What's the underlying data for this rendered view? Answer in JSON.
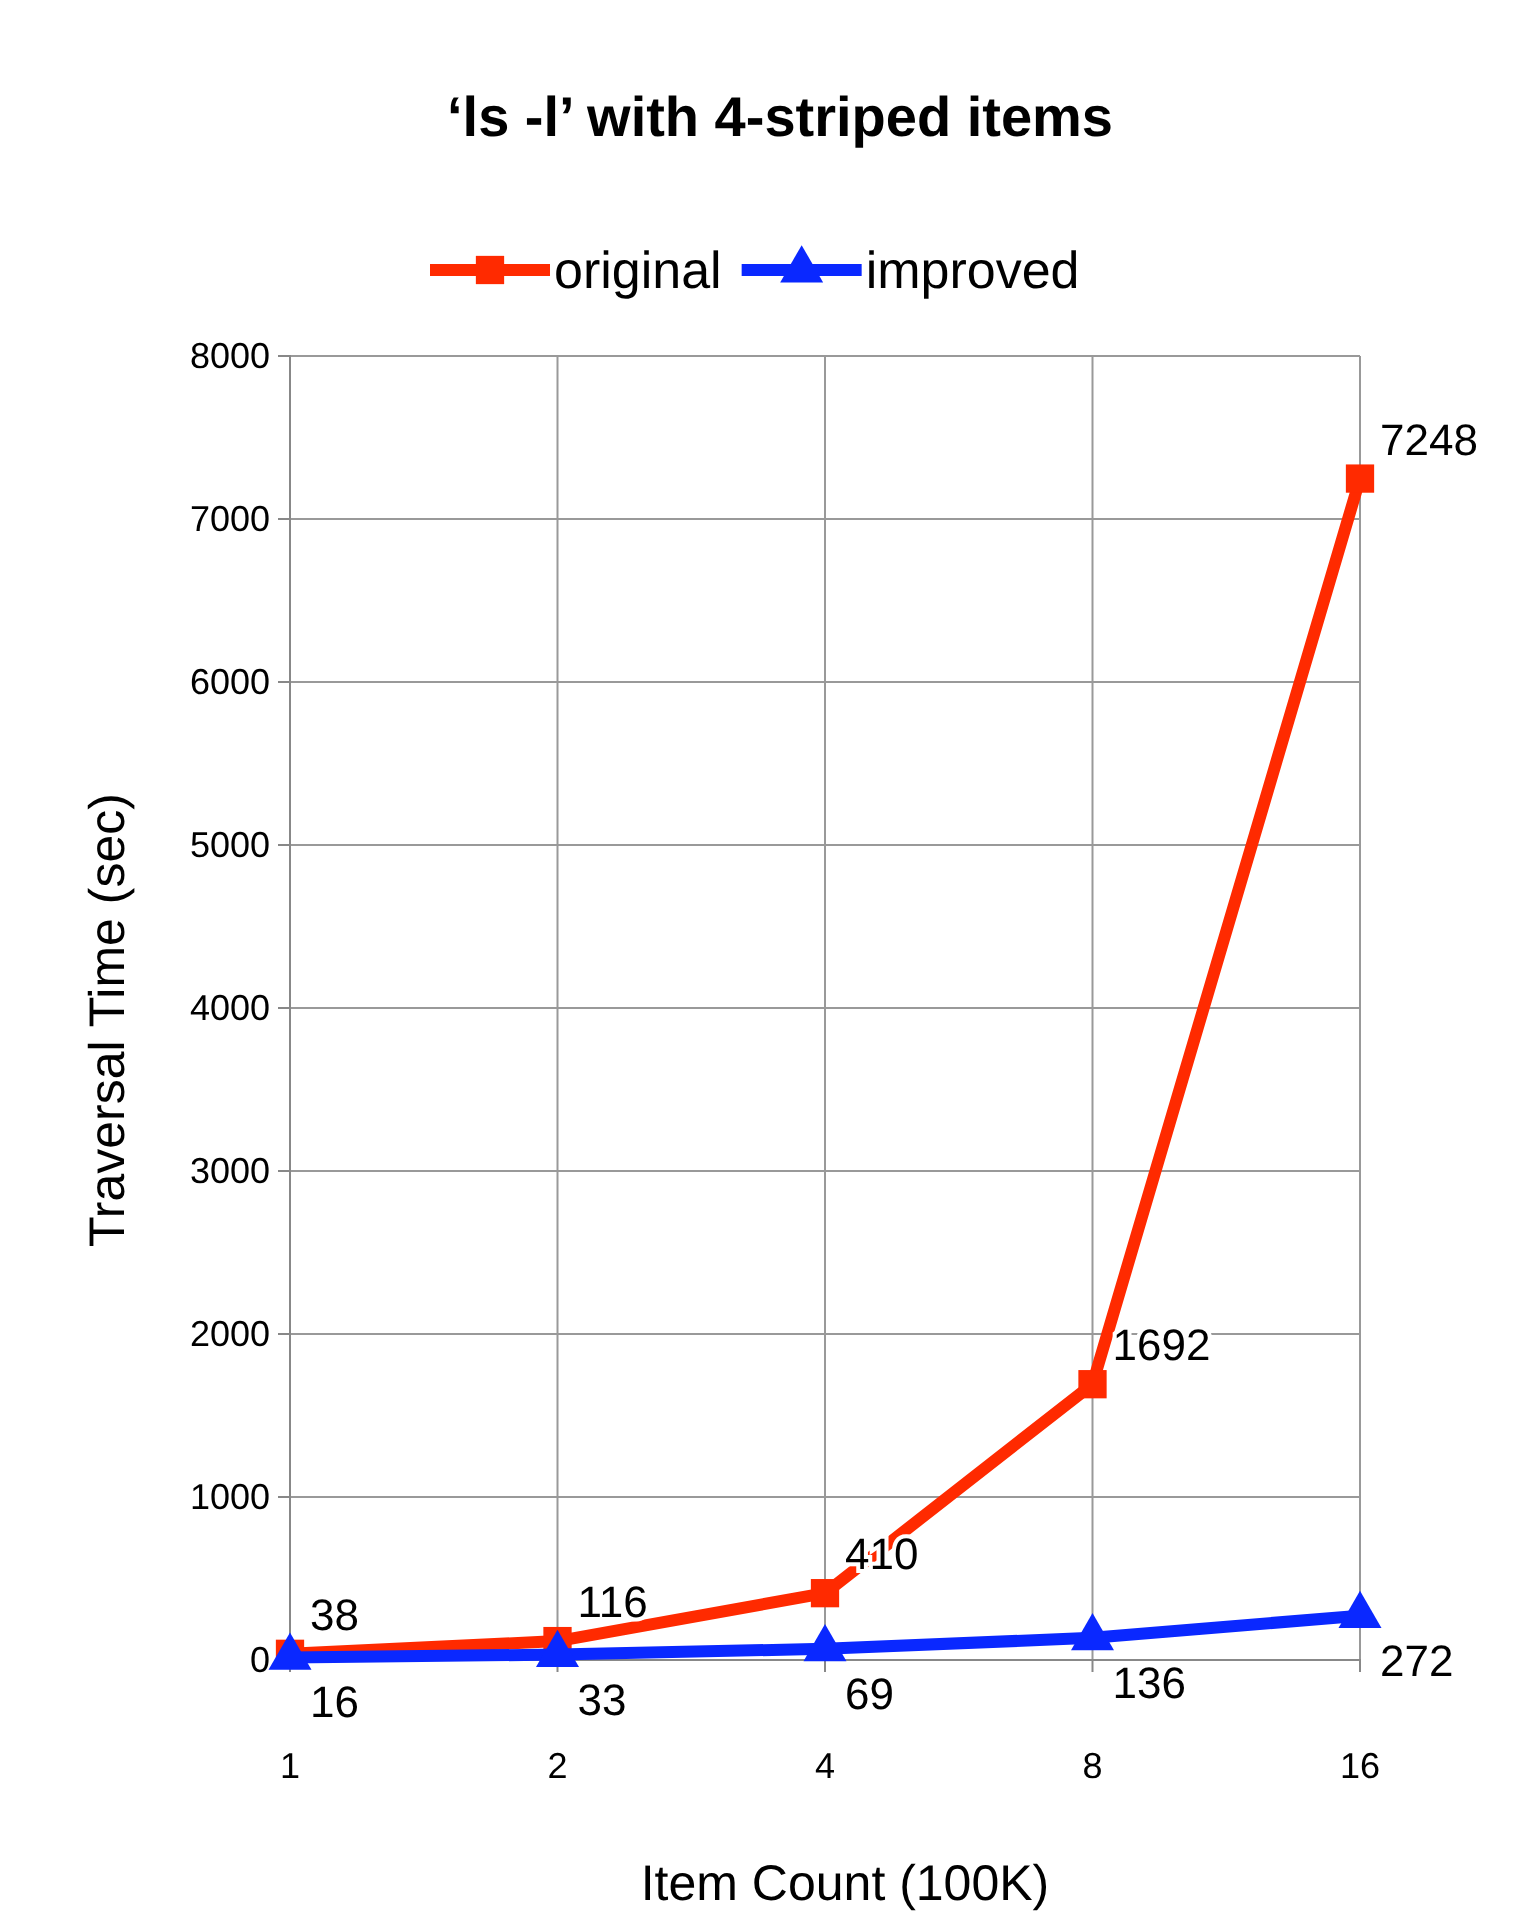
{
  "chart_data": {
    "type": "line",
    "title": "‘ls -l’ with 4-striped items",
    "xlabel": "Item Count (100K)",
    "ylabel": "Traversal Time (sec)",
    "categories": [
      "1",
      "2",
      "4",
      "8",
      "16"
    ],
    "series": [
      {
        "name": "original",
        "color": "#ff2a00",
        "marker": "square",
        "values": [
          38,
          116,
          410,
          1692,
          7248
        ]
      },
      {
        "name": "improved",
        "color": "#0a28ff",
        "marker": "triangle",
        "values": [
          16,
          33,
          69,
          136,
          272
        ]
      }
    ],
    "ylim": [
      0,
      8000
    ],
    "yticks": [
      0,
      1000,
      2000,
      3000,
      4000,
      5000,
      6000,
      7000,
      8000
    ],
    "grid": true,
    "legend": "top",
    "data_labels": true
  }
}
